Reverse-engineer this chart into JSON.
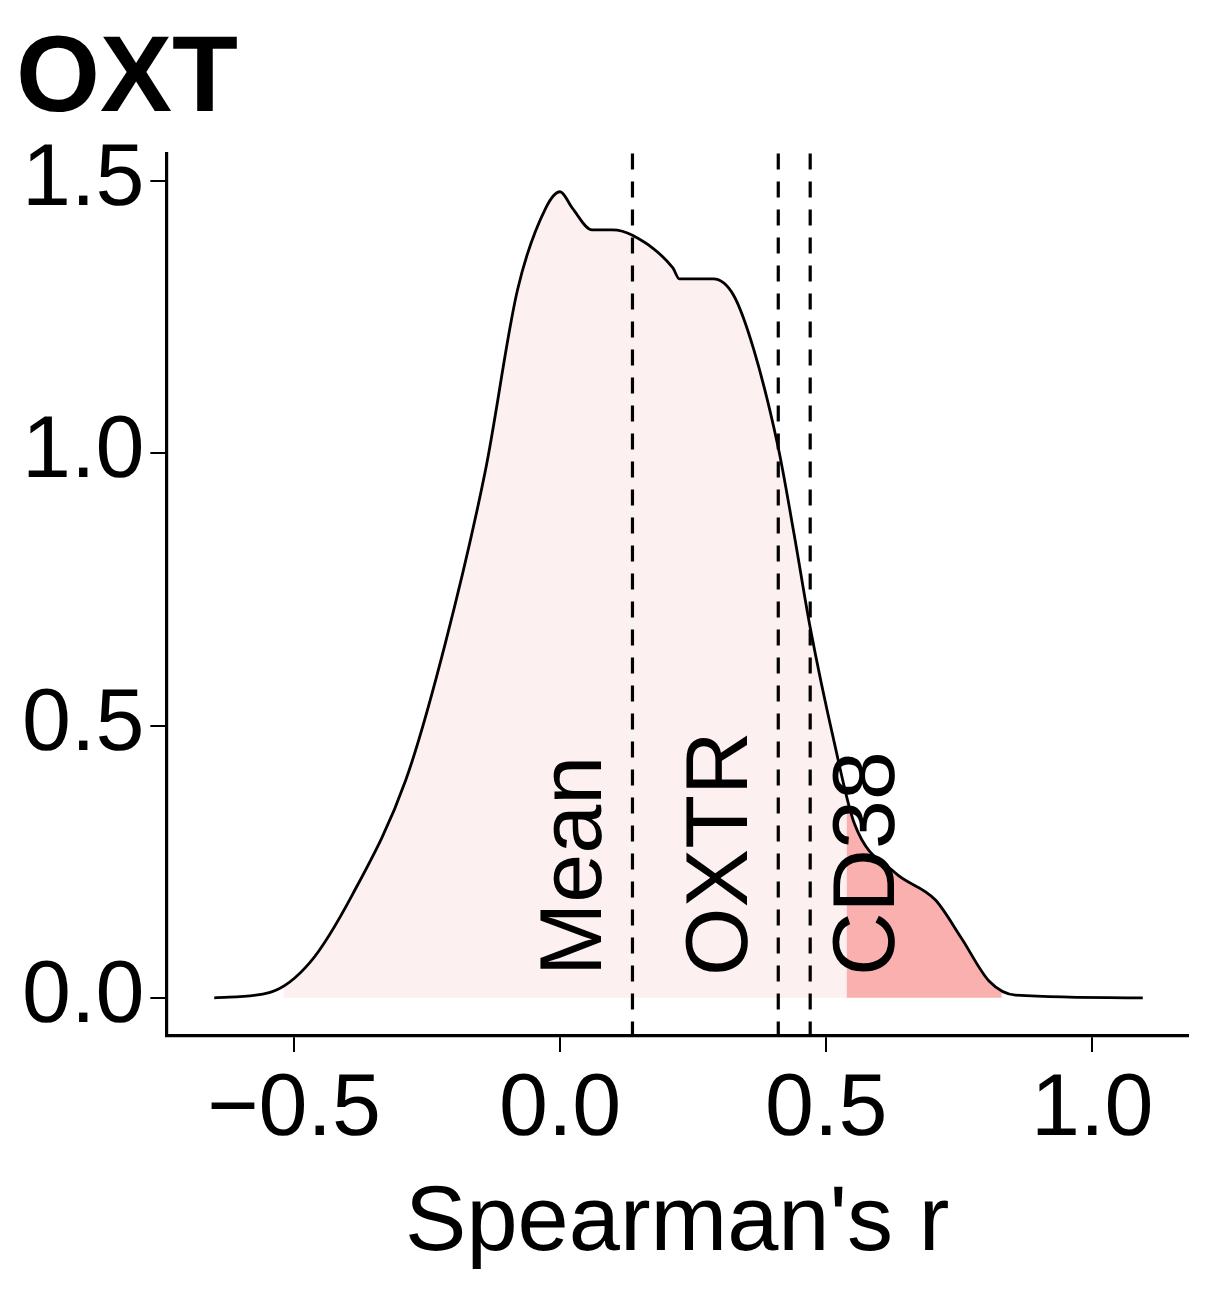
{
  "chart_data": {
    "type": "area",
    "title": "OXT",
    "xlabel": "Spearman's r",
    "xlim": [
      -0.74,
      1.18
    ],
    "ylim": [
      -0.07,
      1.55
    ],
    "xticks": [
      {
        "value": -0.5,
        "label": "−0.5"
      },
      {
        "value": 0,
        "label": "0.0"
      },
      {
        "value": 0.5,
        "label": "0.5"
      },
      {
        "value": 1,
        "label": "1.0"
      }
    ],
    "yticks": [
      {
        "value": 0,
        "label": "0.0"
      },
      {
        "value": 0.5,
        "label": "0.5"
      },
      {
        "value": 1,
        "label": "1.0"
      },
      {
        "value": 1.5,
        "label": "1.5"
      }
    ],
    "grid": false,
    "legend": false,
    "marker": "none",
    "series": [
      {
        "type": "area",
        "color": "#fdf0f0",
        "x": [
          -0.52,
          -0.47,
          -0.39,
          -0.29,
          -0.216,
          -0.14,
          -0.08,
          -0.027,
          0.0,
          0.023,
          0.06,
          0.098,
          0.136,
          0.212,
          0.224,
          0.288,
          0.326,
          0.364,
          0.41,
          0.44,
          0.47,
          0.515,
          0.538
        ],
        "values": [
          0.02,
          0.065,
          0.19,
          0.4,
          0.65,
          0.97,
          1.3,
          1.45,
          1.48,
          1.45,
          1.41,
          1.41,
          1.4,
          1.34,
          1.32,
          1.32,
          1.29,
          1.19,
          1.01,
          0.85,
          0.68,
          0.47,
          0.37
        ]
      },
      {
        "type": "area",
        "color": "#fbb0b0",
        "x": [
          0.538,
          0.553,
          0.629,
          0.705,
          0.754,
          0.807,
          0.83
        ],
        "values": [
          0.37,
          0.32,
          0.23,
          0.18,
          0.11,
          0.03,
          0.01
        ]
      },
      {
        "type": "line",
        "color": "#000000",
        "line_style": "solid",
        "x": [
          -0.65,
          -0.545,
          -0.47,
          -0.39,
          -0.29,
          -0.216,
          -0.14,
          -0.08,
          -0.027,
          0.0,
          0.023,
          0.06,
          0.098,
          0.136,
          0.212,
          0.224,
          0.288,
          0.326,
          0.364,
          0.41,
          0.44,
          0.47,
          0.515,
          0.553,
          0.629,
          0.705,
          0.754,
          0.807,
          0.856,
          1.095
        ],
        "values": [
          0,
          0.01,
          0.065,
          0.19,
          0.4,
          0.65,
          0.97,
          1.3,
          1.45,
          1.48,
          1.45,
          1.41,
          1.41,
          1.4,
          1.34,
          1.32,
          1.32,
          1.29,
          1.19,
          1.01,
          0.85,
          0.68,
          0.47,
          0.32,
          0.23,
          0.18,
          0.11,
          0.03,
          0.005,
          0
        ]
      }
    ],
    "ref_lines": [
      {
        "axis": "x",
        "value": 0.136,
        "label": "Mean",
        "color": "#000000",
        "line_style": "dashed"
      },
      {
        "axis": "x",
        "value": 0.41,
        "label": "OXTR",
        "color": "#000000",
        "line_style": "dashed"
      },
      {
        "axis": "x",
        "value": 0.47,
        "label": "CD38",
        "color": "#000000",
        "line_style": "dashed"
      }
    ]
  }
}
